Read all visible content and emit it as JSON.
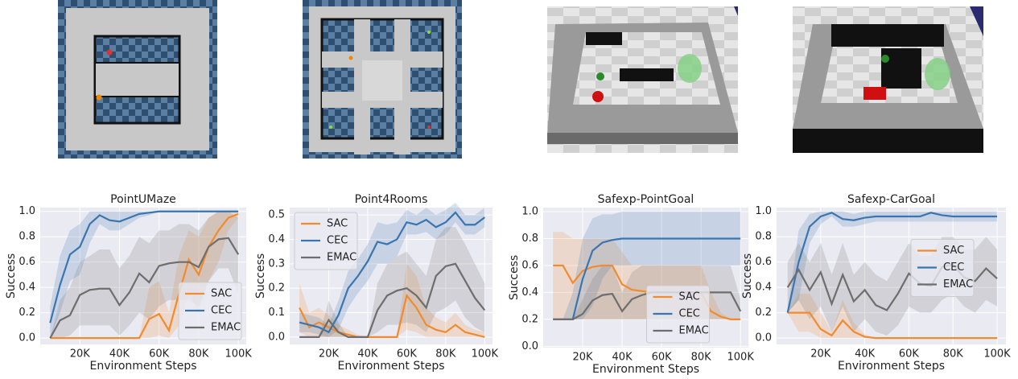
{
  "chart_data": [
    {
      "type": "line",
      "title": "PointUMaze",
      "x_label": "Environment Steps",
      "y_label": "Success",
      "grid": true,
      "legend": "lower right",
      "x": [
        5000,
        10000,
        15000,
        20000,
        25000,
        30000,
        35000,
        40000,
        45000,
        50000,
        55000,
        60000,
        65000,
        70000,
        75000,
        80000,
        85000,
        90000,
        95000,
        100000
      ],
      "xlim": [
        0,
        104000
      ],
      "xticks": [
        {
          "value": 20000,
          "label": "20K"
        },
        {
          "value": 40000,
          "label": "40K"
        },
        {
          "value": 60000,
          "label": "60K"
        },
        {
          "value": 80000,
          "label": "80K"
        },
        {
          "value": 100000,
          "label": "100K"
        }
      ],
      "ylim": [
        -0.05,
        1.03
      ],
      "yticks": [
        {
          "value": 0,
          "label": "0.0"
        },
        {
          "value": 0.2,
          "label": "0.2"
        },
        {
          "value": 0.4,
          "label": "0.4"
        },
        {
          "value": 0.6,
          "label": "0.6"
        },
        {
          "value": 0.8,
          "label": "0.8"
        },
        {
          "value": 1,
          "label": "1.0"
        }
      ],
      "series": [
        {
          "name": "SAC",
          "color": "#f28a30",
          "values": [
            0,
            0,
            0,
            0,
            0,
            0,
            0,
            0,
            0,
            0,
            0.15,
            0.19,
            0.06,
            0.35,
            0.62,
            0.5,
            0.72,
            0.85,
            0.95,
            0.98
          ],
          "lower": [
            0,
            0,
            0,
            0,
            0,
            0,
            0,
            0,
            0,
            0,
            0,
            0.02,
            0,
            0.1,
            0.35,
            0.2,
            0.45,
            0.6,
            0.85,
            0.95
          ],
          "upper": [
            0,
            0,
            0,
            0,
            0,
            0,
            0,
            0,
            0,
            0,
            0.4,
            0.45,
            0.2,
            0.65,
            0.85,
            0.8,
            0.95,
            1,
            1,
            1
          ]
        },
        {
          "name": "CEC",
          "color": "#3b75af",
          "values": [
            0.12,
            0.42,
            0.66,
            0.72,
            0.9,
            0.97,
            0.93,
            0.92,
            0.95,
            0.98,
            0.99,
            1,
            1,
            1,
            1,
            1,
            1,
            1,
            1,
            1
          ],
          "lower": [
            0,
            0.2,
            0.45,
            0.5,
            0.75,
            0.9,
            0.85,
            0.85,
            0.9,
            0.95,
            0.97,
            1,
            1,
            1,
            1,
            1,
            1,
            1,
            1,
            1
          ],
          "upper": [
            0.25,
            0.65,
            0.85,
            0.9,
            1,
            1,
            1,
            1,
            1,
            1,
            1,
            1,
            1,
            1,
            1,
            1,
            1,
            1,
            1,
            1
          ]
        },
        {
          "name": "EMAC",
          "color": "#6e6e6e",
          "values": [
            0,
            0.14,
            0.18,
            0.34,
            0.38,
            0.39,
            0.39,
            0.26,
            0.36,
            0.51,
            0.44,
            0.57,
            0.59,
            0.6,
            0.6,
            0.56,
            0.72,
            0.78,
            0.79,
            0.66
          ],
          "lower": [
            0,
            0,
            0.02,
            0.1,
            0.1,
            0.1,
            0.1,
            0.02,
            0.1,
            0.2,
            0.15,
            0.25,
            0.3,
            0.3,
            0.3,
            0.25,
            0.45,
            0.55,
            0.55,
            0.35
          ],
          "upper": [
            0,
            0.3,
            0.4,
            0.6,
            0.65,
            0.7,
            0.7,
            0.55,
            0.65,
            0.8,
            0.75,
            0.85,
            0.85,
            0.9,
            0.9,
            0.85,
            0.95,
            1,
            1,
            0.95
          ]
        }
      ]
    },
    {
      "type": "line",
      "title": "Point4Rooms",
      "x_label": "Environment Steps",
      "y_label": "Success",
      "grid": true,
      "legend": "upper left",
      "x": [
        5000,
        10000,
        15000,
        20000,
        25000,
        30000,
        35000,
        40000,
        45000,
        50000,
        55000,
        60000,
        65000,
        70000,
        75000,
        80000,
        85000,
        90000,
        95000,
        100000
      ],
      "xlim": [
        0,
        104000
      ],
      "xticks": [
        {
          "value": 20000,
          "label": "20K"
        },
        {
          "value": 40000,
          "label": "40K"
        },
        {
          "value": 60000,
          "label": "60K"
        },
        {
          "value": 80000,
          "label": "80K"
        },
        {
          "value": 100000,
          "label": "100K"
        }
      ],
      "ylim": [
        -0.03,
        0.53
      ],
      "yticks": [
        {
          "value": 0,
          "label": "0.0"
        },
        0.1,
        0.2,
        0.3,
        0.4,
        0.5
      ],
      "series": [
        {
          "name": "SAC",
          "color": "#f28a30",
          "values": [
            0.12,
            0.04,
            0.06,
            0.04,
            0.02,
            0.01,
            0,
            0,
            0,
            0,
            0,
            0.17,
            0.12,
            0.05,
            0.03,
            0.02,
            0.05,
            0.02,
            0.01,
            0
          ],
          "lower": [
            0.02,
            0,
            0,
            0,
            0,
            0,
            0,
            0,
            0,
            0,
            0,
            0.03,
            0.02,
            0,
            0,
            0,
            0,
            0,
            0,
            0
          ],
          "upper": [
            0.22,
            0.1,
            0.12,
            0.09,
            0.05,
            0.03,
            0.01,
            0,
            0,
            0,
            0,
            0.3,
            0.25,
            0.12,
            0.08,
            0.06,
            0.1,
            0.05,
            0.03,
            0.02
          ]
        },
        {
          "name": "CEC",
          "color": "#3b75af",
          "values": [
            0.06,
            0.05,
            0.04,
            0.02,
            0.09,
            0.2,
            0.25,
            0.31,
            0.39,
            0.38,
            0.4,
            0.47,
            0.46,
            0.48,
            0.45,
            0.47,
            0.51,
            0.46,
            0.46,
            0.49
          ],
          "lower": [
            0.02,
            0.02,
            0.01,
            0,
            0.03,
            0.12,
            0.18,
            0.23,
            0.3,
            0.3,
            0.33,
            0.42,
            0.42,
            0.43,
            0.4,
            0.42,
            0.47,
            0.42,
            0.42,
            0.45
          ],
          "upper": [
            0.1,
            0.09,
            0.08,
            0.05,
            0.15,
            0.27,
            0.32,
            0.38,
            0.47,
            0.46,
            0.47,
            0.52,
            0.5,
            0.53,
            0.5,
            0.52,
            0.55,
            0.5,
            0.5,
            0.53
          ]
        },
        {
          "name": "EMAC",
          "color": "#6e6e6e",
          "values": [
            0,
            0,
            0,
            0.07,
            0.02,
            0,
            0,
            0,
            0.11,
            0.17,
            0.19,
            0.2,
            0.17,
            0.12,
            0.25,
            0.29,
            0.3,
            0.23,
            0.16,
            0.11
          ],
          "lower": [
            0,
            0,
            0,
            0,
            0,
            0,
            0,
            0,
            0.02,
            0.05,
            0.05,
            0.06,
            0.05,
            0.02,
            0.1,
            0.12,
            0.15,
            0.08,
            0.04,
            0.02
          ],
          "upper": [
            0,
            0,
            0,
            0.15,
            0.06,
            0,
            0,
            0,
            0.22,
            0.3,
            0.33,
            0.35,
            0.3,
            0.25,
            0.4,
            0.45,
            0.45,
            0.38,
            0.3,
            0.22
          ]
        }
      ]
    },
    {
      "type": "line",
      "title": "Safexp-PointGoal",
      "x_label": "Environment Steps",
      "y_label": "Success",
      "grid": true,
      "legend": "lower center",
      "x": [
        5000,
        10000,
        15000,
        20000,
        25000,
        30000,
        35000,
        40000,
        45000,
        50000,
        55000,
        60000,
        65000,
        70000,
        75000,
        80000,
        85000,
        90000,
        95000,
        100000
      ],
      "xlim": [
        0,
        104000
      ],
      "xticks": [
        {
          "value": 20000,
          "label": "20K"
        },
        {
          "value": 40000,
          "label": "40K"
        },
        {
          "value": 60000,
          "label": "60K"
        },
        {
          "value": 80000,
          "label": "80K"
        },
        {
          "value": 100000,
          "label": "100K"
        }
      ],
      "ylim": [
        -0.01,
        1.03
      ],
      "yticks": [
        {
          "value": 0,
          "label": "0.0"
        },
        {
          "value": 0.2,
          "label": "0.2"
        },
        {
          "value": 0.4,
          "label": "0.4"
        },
        {
          "value": 0.6,
          "label": "0.6"
        },
        {
          "value": 0.8,
          "label": "0.8"
        },
        {
          "value": 1,
          "label": "1.0"
        }
      ],
      "series": [
        {
          "name": "SAC",
          "color": "#f28a30",
          "values": [
            0.6,
            0.6,
            0.47,
            0.56,
            0.59,
            0.6,
            0.6,
            0.46,
            0.42,
            0.41,
            0.4,
            0.4,
            0.4,
            0.4,
            0.4,
            0.4,
            0.26,
            0.22,
            0.2,
            0.2
          ],
          "lower": [
            0.2,
            0.2,
            0.2,
            0.2,
            0.2,
            0.2,
            0.2,
            0.2,
            0.2,
            0.2,
            0.2,
            0.2,
            0.2,
            0.2,
            0.2,
            0.2,
            0.2,
            0.2,
            0.2,
            0.2
          ],
          "upper": [
            0.85,
            0.85,
            0.8,
            0.8,
            0.8,
            0.8,
            0.8,
            0.7,
            0.6,
            0.6,
            0.6,
            0.6,
            0.6,
            0.6,
            0.6,
            0.6,
            0.4,
            0.25,
            0.2,
            0.2
          ]
        },
        {
          "name": "CEC",
          "color": "#3b75af",
          "values": [
            0.2,
            0.2,
            0.2,
            0.5,
            0.71,
            0.77,
            0.79,
            0.8,
            0.8,
            0.8,
            0.8,
            0.8,
            0.8,
            0.8,
            0.8,
            0.8,
            0.8,
            0.8,
            0.8,
            0.8
          ],
          "lower": [
            0.2,
            0.2,
            0.2,
            0.2,
            0.3,
            0.5,
            0.6,
            0.6,
            0.6,
            0.6,
            0.6,
            0.6,
            0.6,
            0.6,
            0.6,
            0.6,
            0.6,
            0.6,
            0.6,
            0.6
          ],
          "upper": [
            0.2,
            0.2,
            0.4,
            0.8,
            0.95,
            0.98,
            0.98,
            1,
            1,
            1,
            1,
            1,
            1,
            1,
            1,
            1,
            1,
            1,
            1,
            1
          ]
        },
        {
          "name": "EMAC",
          "color": "#6e6e6e",
          "values": [
            0.2,
            0.2,
            0.2,
            0.24,
            0.34,
            0.38,
            0.39,
            0.26,
            0.35,
            0.38,
            0.4,
            0.4,
            0.4,
            0.4,
            0.4,
            0.4,
            0.4,
            0.4,
            0.4,
            0.26
          ],
          "lower": [
            0.2,
            0.2,
            0.2,
            0.2,
            0.2,
            0.2,
            0.2,
            0.2,
            0.2,
            0.2,
            0.2,
            0.2,
            0.2,
            0.2,
            0.2,
            0.2,
            0.2,
            0.2,
            0.2,
            0.2
          ],
          "upper": [
            0.2,
            0.2,
            0.2,
            0.35,
            0.5,
            0.6,
            0.6,
            0.4,
            0.55,
            0.6,
            0.6,
            0.6,
            0.6,
            0.6,
            0.6,
            0.6,
            0.6,
            0.6,
            0.6,
            0.35
          ]
        }
      ]
    },
    {
      "type": "line",
      "title": "Safexp-CarGoal",
      "x_label": "Environment Steps",
      "y_label": "Success",
      "grid": true,
      "legend": "center right",
      "x": [
        5000,
        10000,
        15000,
        20000,
        25000,
        30000,
        35000,
        40000,
        45000,
        50000,
        55000,
        60000,
        65000,
        70000,
        75000,
        80000,
        85000,
        90000,
        95000,
        100000
      ],
      "xlim": [
        0,
        104000
      ],
      "xticks": [
        {
          "value": 20000,
          "label": "20K"
        },
        {
          "value": 40000,
          "label": "40K"
        },
        {
          "value": 60000,
          "label": "60K"
        },
        {
          "value": 80000,
          "label": "80K"
        },
        {
          "value": 100000,
          "label": "100K"
        }
      ],
      "ylim": [
        -0.05,
        1.03
      ],
      "yticks": [
        {
          "value": 0,
          "label": "0.0"
        },
        {
          "value": 0.2,
          "label": "0.2"
        },
        {
          "value": 0.4,
          "label": "0.4"
        },
        {
          "value": 0.6,
          "label": "0.6"
        },
        {
          "value": 0.8,
          "label": "0.8"
        },
        {
          "value": 1,
          "label": "1.0"
        }
      ],
      "series": [
        {
          "name": "SAC",
          "color": "#f28a30",
          "values": [
            0.2,
            0.2,
            0.2,
            0.07,
            0.02,
            0.14,
            0.05,
            0.01,
            0,
            0,
            0,
            0,
            0,
            0,
            0,
            0,
            0,
            0,
            0,
            0
          ],
          "lower": [
            0.2,
            0.05,
            0.05,
            0,
            0,
            0,
            0,
            0,
            0,
            0,
            0,
            0,
            0,
            0,
            0,
            0,
            0,
            0,
            0,
            0
          ],
          "upper": [
            0.2,
            0.35,
            0.35,
            0.2,
            0.05,
            0.3,
            0.12,
            0.03,
            0,
            0,
            0,
            0,
            0,
            0,
            0,
            0,
            0,
            0,
            0,
            0
          ]
        },
        {
          "name": "CEC",
          "color": "#3b75af",
          "values": [
            0.2,
            0.6,
            0.88,
            0.96,
            0.99,
            0.94,
            0.93,
            0.95,
            0.96,
            0.96,
            0.96,
            0.96,
            0.96,
            0.99,
            0.97,
            0.96,
            0.96,
            0.96,
            0.96,
            0.96
          ],
          "lower": [
            0.2,
            0.3,
            0.75,
            0.9,
            0.96,
            0.88,
            0.88,
            0.9,
            0.92,
            0.92,
            0.92,
            0.92,
            0.92,
            0.92,
            0.92,
            0.92,
            0.92,
            0.92,
            0.92,
            0.92
          ],
          "upper": [
            0.2,
            0.85,
            0.98,
            1,
            1,
            1,
            0.98,
            1,
            1,
            1,
            1,
            1,
            1,
            1,
            1,
            1,
            1,
            1,
            1,
            1
          ]
        },
        {
          "name": "EMAC",
          "color": "#6e6e6e",
          "values": [
            0.4,
            0.54,
            0.38,
            0.52,
            0.27,
            0.5,
            0.29,
            0.38,
            0.26,
            0.22,
            0.35,
            0.51,
            0.43,
            0.41,
            0.56,
            0.58,
            0.48,
            0.45,
            0.55,
            0.47
          ],
          "lower": [
            0.2,
            0.3,
            0.15,
            0.25,
            0.05,
            0.25,
            0.05,
            0.15,
            0.05,
            0.02,
            0.1,
            0.25,
            0.2,
            0.2,
            0.3,
            0.35,
            0.25,
            0.2,
            0.3,
            0.25
          ],
          "upper": [
            0.6,
            0.75,
            0.6,
            0.75,
            0.5,
            0.75,
            0.5,
            0.6,
            0.5,
            0.45,
            0.6,
            0.75,
            0.65,
            0.65,
            0.8,
            0.8,
            0.7,
            0.7,
            0.8,
            0.7
          ]
        }
      ]
    }
  ]
}
